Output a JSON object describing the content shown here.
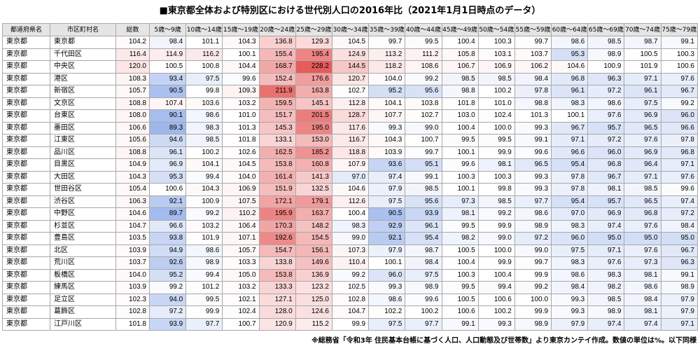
{
  "colors": {
    "header_background": "#e5e5e5",
    "grid_line": "#a8a8a8",
    "scale_low": "#9fb8ec",
    "scale_mid": "#ffffff",
    "scale_high": "#e75b5b"
  },
  "chart_data": {
    "type": "heatmap",
    "title": "■東京都全体および特別区における世代別人口の2016年比（2021年1月1日時点のデータ）",
    "columns": [
      "都道府県名",
      "市区町村名",
      "総数",
      "5歳～9歳",
      "10歳～14歳",
      "15歳～19歳",
      "20歳～24歳",
      "25歳～29歳",
      "30歳～34歳",
      "35歳～39歳",
      "40歳～44歳",
      "45歳～49歳",
      "50歳～54歳",
      "55歳～59歳",
      "60歳～64歳",
      "65歳～69歳",
      "70歳～74歳",
      "75歳～79歳"
    ],
    "rows": [
      {
        "prefecture": "東京都",
        "municipality": "東京都",
        "values": [
          104.2,
          98.4,
          101.1,
          104.3,
          136.8,
          129.3,
          104.5,
          99.7,
          99.5,
          100.4,
          100.3,
          99.7,
          98.6,
          98.5,
          98.7,
          99.1
        ]
      },
      {
        "prefecture": "東京都",
        "municipality": "千代田区",
        "values": [
          116.4,
          114.9,
          116.2,
          100.1,
          155.4,
          195.4,
          124.9,
          113.2,
          111.2,
          105.8,
          103.1,
          103.7,
          95.3,
          98.9,
          100.5,
          100.3
        ]
      },
      {
        "prefecture": "東京都",
        "municipality": "中央区",
        "values": [
          120.0,
          100.5,
          100.8,
          104.4,
          168.7,
          228.2,
          144.5,
          118.2,
          108.6,
          106.7,
          106.9,
          106.2,
          104.6,
          100.9,
          101.9,
          100.6
        ]
      },
      {
        "prefecture": "東京都",
        "municipality": "港区",
        "values": [
          108.3,
          93.4,
          97.5,
          99.6,
          152.4,
          176.6,
          120.7,
          104.0,
          99.2,
          98.5,
          98.5,
          98.4,
          96.8,
          96.3,
          97.1,
          97.6
        ]
      },
      {
        "prefecture": "東京都",
        "municipality": "新宿区",
        "values": [
          105.7,
          90.5,
          99.8,
          109.3,
          211.9,
          163.8,
          102.7,
          95.2,
          95.6,
          98.8,
          100.2,
          97.8,
          96.1,
          97.2,
          96.1,
          96.7
        ]
      },
      {
        "prefecture": "東京都",
        "municipality": "文京区",
        "values": [
          108.8,
          107.4,
          103.6,
          103.2,
          159.5,
          145.1,
          112.8,
          104.1,
          103.8,
          101.8,
          101.0,
          98.8,
          98.3,
          98.6,
          97.5,
          99.2
        ]
      },
      {
        "prefecture": "東京都",
        "municipality": "台東区",
        "values": [
          108.0,
          90.1,
          98.6,
          101.0,
          151.7,
          201.5,
          128.7,
          107.7,
          102.7,
          103.0,
          102.4,
          101.3,
          100.1,
          97.6,
          96.9,
          96.0
        ]
      },
      {
        "prefecture": "東京都",
        "municipality": "墨田区",
        "values": [
          106.6,
          89.3,
          98.3,
          101.3,
          145.3,
          195.0,
          117.6,
          99.3,
          99.0,
          100.4,
          100.0,
          99.3,
          96.7,
          95.7,
          96.5,
          96.6
        ]
      },
      {
        "prefecture": "東京都",
        "municipality": "江東区",
        "values": [
          105.6,
          94.6,
          98.5,
          101.8,
          133.1,
          153.0,
          116.7,
          104.3,
          100.7,
          99.5,
          99.5,
          99.1,
          97.1,
          97.2,
          97.6,
          97.8
        ]
      },
      {
        "prefecture": "東京都",
        "municipality": "品川区",
        "values": [
          108.8,
          96.1,
          100.2,
          102.6,
          162.5,
          185.2,
          118.8,
          103.9,
          99.7,
          100.1,
          99.9,
          99.6,
          96.6,
          96.0,
          96.9,
          96.8
        ]
      },
      {
        "prefecture": "東京都",
        "municipality": "目黒区",
        "values": [
          104.9,
          96.9,
          104.1,
          104.5,
          153.8,
          160.8,
          107.9,
          93.6,
          95.1,
          99.6,
          98.1,
          96.5,
          95.4,
          96.8,
          96.4,
          97.1
        ]
      },
      {
        "prefecture": "東京都",
        "municipality": "大田区",
        "values": [
          104.3,
          95.3,
          99.4,
          104.0,
          161.4,
          141.3,
          97.0,
          97.4,
          99.1,
          100.3,
          100.3,
          99.3,
          97.8,
          96.7,
          97.1,
          97.6
        ]
      },
      {
        "prefecture": "東京都",
        "municipality": "世田谷区",
        "values": [
          105.4,
          100.6,
          104.3,
          106.9,
          151.9,
          132.5,
          104.6,
          97.9,
          98.5,
          100.1,
          99.8,
          99.3,
          97.8,
          98.1,
          98.5,
          99.6
        ]
      },
      {
        "prefecture": "東京都",
        "municipality": "渋谷区",
        "values": [
          106.3,
          92.1,
          100.9,
          107.5,
          172.1,
          179.1,
          112.6,
          97.5,
          95.6,
          97.3,
          98.5,
          97.7,
          95.4,
          95.7,
          96.5,
          97.4
        ]
      },
      {
        "prefecture": "東京都",
        "municipality": "中野区",
        "values": [
          104.6,
          89.7,
          99.2,
          110.2,
          195.9,
          163.7,
          100.4,
          90.5,
          93.9,
          98.1,
          99.2,
          98.6,
          97.0,
          96.9,
          96.8,
          97.2
        ]
      },
      {
        "prefecture": "東京都",
        "municipality": "杉並区",
        "values": [
          104.7,
          96.6,
          103.2,
          106.4,
          170.3,
          148.2,
          98.3,
          92.9,
          96.1,
          99.5,
          99.9,
          98.9,
          98.3,
          97.4,
          97.6,
          98.4
        ]
      },
      {
        "prefecture": "東京都",
        "municipality": "豊島区",
        "values": [
          103.5,
          93.8,
          101.9,
          107.1,
          192.6,
          154.5,
          99.0,
          92.1,
          95.4,
          98.2,
          99.0,
          97.2,
          96.0,
          95.0,
          95.0,
          95.0
        ]
      },
      {
        "prefecture": "東京都",
        "municipality": "北区",
        "values": [
          103.9,
          94.9,
          98.6,
          105.7,
          154.7,
          156.1,
          107.3,
          97.9,
          98.7,
          100.5,
          100.0,
          99.0,
          97.5,
          97.1,
          97.6,
          96.7
        ]
      },
      {
        "prefecture": "東京都",
        "municipality": "荒川区",
        "values": [
          103.7,
          92.6,
          98.9,
          103.3,
          133.8,
          149.6,
          110.4,
          100.1,
          98.4,
          100.4,
          99.9,
          99.7,
          98.3,
          97.6,
          97.3,
          96.3
        ]
      },
      {
        "prefecture": "東京都",
        "municipality": "板橋区",
        "values": [
          104.0,
          95.2,
          99.4,
          105.0,
          153.8,
          136.9,
          99.2,
          96.0,
          97.5,
          100.3,
          100.4,
          99.9,
          98.6,
          98.3,
          98.1,
          99.1
        ]
      },
      {
        "prefecture": "東京都",
        "municipality": "練馬区",
        "values": [
          103.9,
          99.2,
          101.2,
          103.2,
          133.3,
          123.2,
          102.5,
          99.3,
          98.9,
          99.5,
          99.4,
          99.2,
          98.4,
          98.2,
          98.6,
          98.9
        ]
      },
      {
        "prefecture": "東京都",
        "municipality": "足立区",
        "values": [
          102.3,
          94.0,
          99.5,
          102.1,
          127.1,
          125.0,
          102.8,
          98.6,
          99.6,
          100.5,
          100.6,
          100.0,
          99.3,
          98.5,
          98.4,
          97.9
        ]
      },
      {
        "prefecture": "東京都",
        "municipality": "葛飾区",
        "values": [
          102.8,
          97.2,
          99.9,
          102.4,
          128.0,
          124.6,
          104.7,
          102.2,
          100.2,
          100.6,
          100.2,
          99.9,
          99.3,
          98.9,
          98.1,
          97.9
        ]
      },
      {
        "prefecture": "東京都",
        "municipality": "江戸川区",
        "values": [
          101.8,
          93.9,
          97.7,
          100.7,
          120.9,
          115.2,
          99.9,
          97.5,
          97.7,
          99.1,
          99.3,
          98.9,
          97.9,
          97.4,
          97.4,
          97.1
        ]
      }
    ],
    "note": "※総務省「令和3年 住民基本台帳に基づく人口、人口動態及び世帯数」より東京カンテイ作成。数値の単位は%。以下同様"
  }
}
